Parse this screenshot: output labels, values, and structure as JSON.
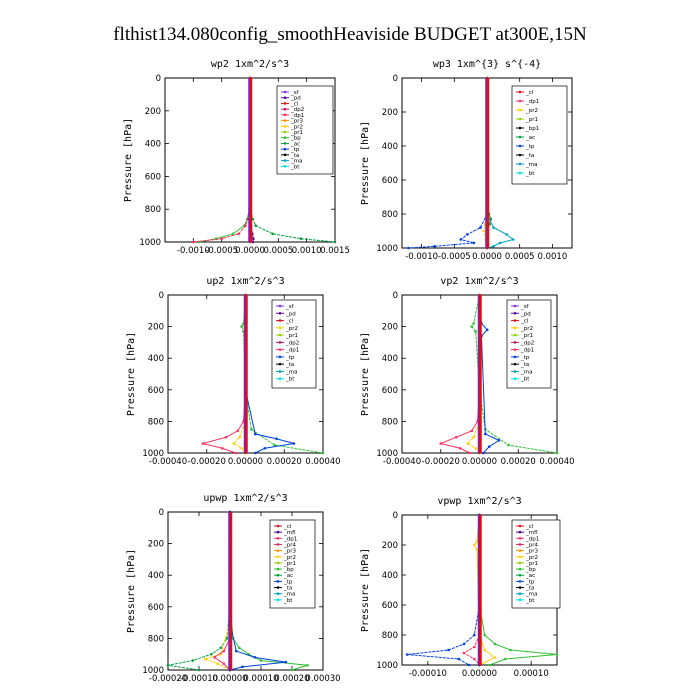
{
  "figure_title": "flthist134.080config_smoothHeaviside  BUDGET at300E,15N",
  "colors": {
    "sf": "#8a2be2",
    "pd": "#5a0aa0",
    "cl": "#e0101a",
    "dp2": "#c01060",
    "dp1": "#ff3060",
    "pr3": "#ff9000",
    "pr2": "#ffd000",
    "pr1": "#90d000",
    "bp": "#30c030",
    "ac": "#00a040",
    "tp": "#0040e0",
    "ta": "#000000",
    "ma": "#00a0c0",
    "bt": "#00e0e0",
    "mfl": "#4b0090",
    "pr4": "#d03070"
  },
  "chart_data": [
    {
      "type": "line",
      "title": "wp2  1xm^2/s^3",
      "xlim": [
        -0.0015,
        0.0015
      ],
      "ylim": [
        1000,
        0
      ],
      "xticks": [
        "-0.0010",
        "-0.0005",
        "0.0000",
        "0.0005",
        "0.0010",
        "0.0015"
      ],
      "xtick_values": [
        -0.001,
        -0.0005,
        0.0,
        0.0005,
        0.001,
        0.0015
      ],
      "yticks": [
        0,
        200,
        400,
        600,
        800,
        1000
      ],
      "ylabel": "Pressure [hPa]",
      "legend": [
        "_sf",
        "_pd",
        "_cl",
        "_dp2",
        "_dp1",
        "_pr3",
        "_pr2",
        "_pr1",
        "_bp",
        "_ac",
        "_tp",
        "_ta",
        "_ma",
        "_bt"
      ],
      "series": [
        {
          "key": "pd",
          "pressure": [
            0,
            300,
            600,
            800,
            900,
            950,
            980,
            1000
          ],
          "values": [
            0,
            0,
            0,
            0,
            2e-05,
            4e-05,
            6e-05,
            5e-05
          ]
        },
        {
          "key": "ac",
          "pressure": [
            0,
            600,
            800,
            860,
            900,
            950,
            980,
            1000
          ],
          "values": [
            0,
            0,
            1e-05,
            5e-05,
            0.0001,
            0.0004,
            0.0009,
            0.0015
          ]
        },
        {
          "key": "bp",
          "pressure": [
            0,
            600,
            800,
            860,
            900,
            950,
            980,
            1000
          ],
          "values": [
            0,
            0,
            -1e-05,
            -5e-05,
            -0.0001,
            -0.0003,
            -0.0006,
            -0.0009
          ]
        },
        {
          "key": "dp1",
          "pressure": [
            0,
            600,
            800,
            860,
            900,
            950,
            980,
            1000
          ],
          "values": [
            0,
            0,
            -1e-05,
            -3e-05,
            -8e-05,
            -0.0002,
            -0.0005,
            -0.001
          ]
        },
        {
          "key": "cl",
          "pressure": [
            0,
            200,
            400,
            600,
            800,
            900,
            950,
            1000
          ],
          "values": [
            0,
            0,
            0,
            0,
            0,
            0,
            0,
            0
          ]
        }
      ]
    },
    {
      "type": "line",
      "title": "wp3  1xm^{3} s^{-4}",
      "xlim": [
        -0.0013,
        0.0013
      ],
      "ylim": [
        1000,
        0
      ],
      "xticks": [
        "-0.0010",
        "-0.0005",
        "0.0000",
        "0.0005",
        "0.0010"
      ],
      "xtick_values": [
        -0.001,
        -0.0005,
        0.0,
        0.0005,
        0.001
      ],
      "yticks": [
        0,
        200,
        400,
        600,
        800,
        1000
      ],
      "ylabel": "Pressure [hPa]",
      "legend": [
        "_cl",
        "_dp1",
        "_pr2",
        "_pr1",
        "_bp1",
        "_ac",
        "_tp",
        "_ta",
        "_ma",
        "_bt"
      ],
      "series": [
        {
          "key": "ac",
          "pressure": [
            0,
            700,
            800,
            830,
            860,
            900,
            950,
            1000
          ],
          "values": [
            0,
            0,
            3e-05,
            6e-05,
            4e-05,
            1e-05,
            0,
            0
          ]
        },
        {
          "key": "tp",
          "pressure": [
            0,
            800,
            880,
            920,
            950,
            970,
            990,
            1000
          ],
          "values": [
            0,
            0,
            -0.0001,
            -0.0003,
            -0.0004,
            -0.0002,
            -0.0008,
            -0.0012
          ]
        },
        {
          "key": "ma",
          "pressure": [
            0,
            800,
            880,
            920,
            950,
            970,
            990,
            1000
          ],
          "values": [
            0,
            0,
            0.0001,
            0.0003,
            0.0004,
            0.0002,
            0.0001,
            0
          ]
        },
        {
          "key": "pr2",
          "pressure": [
            0,
            800,
            860,
            900,
            950,
            1000
          ],
          "values": [
            0,
            0,
            -3e-05,
            -5e-05,
            -2e-05,
            0
          ]
        },
        {
          "key": "cl",
          "pressure": [
            0,
            200,
            400,
            600,
            800,
            1000
          ],
          "values": [
            0,
            0,
            0,
            0,
            0,
            0
          ]
        }
      ]
    },
    {
      "type": "line",
      "title": "up2  1xm^2/s^3",
      "xlim": [
        -0.0004,
        0.0004
      ],
      "ylim": [
        1000,
        0
      ],
      "xticks": [
        "-0.00040",
        "-0.00020",
        "0.00000",
        "0.00020",
        "0.00040"
      ],
      "xtick_values": [
        -0.0004,
        -0.0002,
        0.0,
        0.0002,
        0.0004
      ],
      "yticks": [
        0,
        200,
        400,
        600,
        800,
        1000
      ],
      "ylabel": "Pressure [hPa]",
      "legend": [
        "_sf",
        "_pd",
        "_cl",
        "_pr2",
        "_pr1",
        "_dp2",
        "_dp1",
        "_tp",
        "_ta",
        "_ma",
        "_bt"
      ],
      "series": [
        {
          "key": "dp1",
          "pressure": [
            0,
            600,
            800,
            860,
            900,
            940,
            970,
            1000
          ],
          "values": [
            0,
            0,
            -1e-05,
            -4e-05,
            -0.0001,
            -0.00022,
            -0.00012,
            -5e-05
          ]
        },
        {
          "key": "bp",
          "pressure": [
            0,
            180,
            200,
            230,
            600,
            850,
            950,
            1000
          ],
          "values": [
            0,
            -1e-05,
            -2e-05,
            -1e-05,
            0,
            3e-05,
            0.00015,
            0.0004
          ]
        },
        {
          "key": "tp",
          "pressure": [
            0,
            600,
            880,
            910,
            940,
            970,
            1000
          ],
          "values": [
            0,
            0,
            5e-05,
            0.00016,
            0.00025,
            0.0001,
            5e-05
          ]
        },
        {
          "key": "pr2",
          "pressure": [
            0,
            800,
            900,
            940,
            970,
            1000
          ],
          "values": [
            0,
            0,
            -3e-05,
            -6e-05,
            -2e-05,
            0
          ]
        },
        {
          "key": "cl",
          "pressure": [
            0,
            200,
            400,
            600,
            800,
            1000
          ],
          "values": [
            0,
            0,
            0,
            0,
            0,
            0
          ]
        }
      ]
    },
    {
      "type": "line",
      "title": "vp2  1xm^2/s^3",
      "xlim": [
        -0.0004,
        0.0004
      ],
      "ylim": [
        1000,
        0
      ],
      "xticks": [
        "-0.00040",
        "-0.00020",
        "0.00000",
        "0.00020",
        "0.00040"
      ],
      "xtick_values": [
        -0.0004,
        -0.0002,
        0.0,
        0.0002,
        0.0004
      ],
      "yticks": [
        0,
        200,
        400,
        600,
        800,
        1000
      ],
      "ylabel": "Pressure [hPa]",
      "legend": [
        "_sf",
        "_pd",
        "_cl",
        "_pr2",
        "_pr1",
        "_dp2",
        "_dp1",
        "_tp",
        "_ta",
        "_ma",
        "_bt"
      ],
      "series": [
        {
          "key": "dp1",
          "pressure": [
            0,
            600,
            800,
            860,
            900,
            940,
            970,
            1000
          ],
          "values": [
            0,
            0,
            -1e-05,
            -4e-05,
            -0.00012,
            -0.0002,
            -0.0001,
            -5e-05
          ]
        },
        {
          "key": "bp",
          "pressure": [
            0,
            180,
            200,
            230,
            600,
            850,
            950,
            1000
          ],
          "values": [
            0,
            -3e-05,
            -4e-05,
            -2e-05,
            0,
            3e-05,
            0.00015,
            0.0004
          ]
        },
        {
          "key": "tp",
          "pressure": [
            0,
            180,
            220,
            260,
            880,
            920,
            960,
            1000
          ],
          "values": [
            0,
            1e-05,
            4e-05,
            1e-05,
            3e-05,
            0.0001,
            5e-05,
            2e-05
          ]
        },
        {
          "key": "pr2",
          "pressure": [
            0,
            800,
            900,
            940,
            970,
            1000
          ],
          "values": [
            0,
            0,
            -3e-05,
            -6e-05,
            -2e-05,
            0
          ]
        },
        {
          "key": "cl",
          "pressure": [
            0,
            200,
            400,
            600,
            800,
            1000
          ],
          "values": [
            0,
            0,
            0,
            0,
            0,
            0
          ]
        }
      ]
    },
    {
      "type": "line",
      "title": "upwp  1xm^2/s^3",
      "xlim": [
        -0.0002,
        0.0003
      ],
      "ylim": [
        1000,
        0
      ],
      "xticks": [
        "-0.00020",
        "-0.00010",
        "0.00000",
        "0.00010",
        "0.00020",
        "0.00030"
      ],
      "xtick_values": [
        -0.0002,
        -0.0001,
        0.0,
        0.0001,
        0.0002,
        0.0003
      ],
      "yticks": [
        0,
        200,
        400,
        600,
        800,
        1000
      ],
      "ylabel": "Pressure [hPa]",
      "legend": [
        "_cl",
        "_mfl",
        "_dp1",
        "_pr4",
        "_pr3",
        "_pr2",
        "_pr1",
        "_bp",
        "_ac",
        "_tp",
        "_ta",
        "_ma",
        "_bt"
      ],
      "series": [
        {
          "key": "bp",
          "pressure": [
            0,
            600,
            800,
            860,
            900,
            940,
            970,
            1000
          ],
          "values": [
            0,
            0,
            1e-05,
            3e-05,
            6e-05,
            0.0001,
            0.00025,
            0.0002
          ]
        },
        {
          "key": "ac",
          "pressure": [
            0,
            600,
            800,
            860,
            900,
            940,
            970,
            1000
          ],
          "values": [
            0,
            0,
            -1e-05,
            -3e-05,
            -6e-05,
            -0.00012,
            -0.0002,
            -0.0001
          ]
        },
        {
          "key": "tp",
          "pressure": [
            0,
            700,
            880,
            920,
            950,
            980,
            1000
          ],
          "values": [
            0,
            0,
            2e-05,
            8e-05,
            0.00018,
            4e-05,
            0
          ]
        },
        {
          "key": "pr2",
          "pressure": [
            0,
            700,
            900,
            930,
            960,
            1000
          ],
          "values": [
            0,
            0,
            -3e-05,
            -8e-05,
            -4e-05,
            0
          ]
        },
        {
          "key": "dp1",
          "pressure": [
            0,
            800,
            880,
            920,
            960,
            1000
          ],
          "values": [
            0,
            0,
            -2e-05,
            -5e-05,
            -2e-05,
            0
          ]
        },
        {
          "key": "mfl",
          "pressure": [
            0,
            200,
            400,
            600,
            800,
            1000
          ],
          "values": [
            0,
            0,
            0,
            0,
            0,
            0
          ]
        }
      ]
    },
    {
      "type": "line",
      "title": "vpwp  1xm^2/s^3",
      "xlim": [
        -0.00015,
        0.00015
      ],
      "ylim": [
        1000,
        0
      ],
      "xticks": [
        "-0.00010",
        "0.00000",
        "0.00010"
      ],
      "xtick_values": [
        -0.0001,
        0.0,
        0.0001
      ],
      "yticks": [
        0,
        200,
        400,
        600,
        800,
        1000
      ],
      "ylabel": "Pressure [hPa]",
      "legend": [
        "_cl",
        "_mfl",
        "_dp1",
        "_pr4",
        "_pr3",
        "_pr2",
        "_pr1",
        "_bp",
        "_ac",
        "_tp",
        "_ta",
        "_ma",
        "_bt"
      ],
      "series": [
        {
          "key": "bp",
          "pressure": [
            0,
            600,
            800,
            860,
            900,
            930,
            960,
            1000
          ],
          "values": [
            0,
            0,
            1e-05,
            3e-05,
            6e-05,
            0.00015,
            5e-05,
            2e-05
          ]
        },
        {
          "key": "tp",
          "pressure": [
            0,
            600,
            800,
            860,
            900,
            930,
            960,
            1000
          ],
          "values": [
            0,
            0,
            -1e-05,
            -3e-05,
            -6e-05,
            -0.00014,
            -4e-05,
            -2e-05
          ]
        },
        {
          "key": "pr2",
          "pressure": [
            0,
            180,
            200,
            230,
            800,
            900,
            950,
            1000
          ],
          "values": [
            0,
            -5e-06,
            -1e-05,
            -5e-06,
            0,
            1e-05,
            3e-05,
            0
          ]
        },
        {
          "key": "dp1",
          "pressure": [
            0,
            800,
            880,
            920,
            960,
            1000
          ],
          "values": [
            0,
            0,
            -1e-05,
            -3e-05,
            -1e-05,
            0
          ]
        },
        {
          "key": "mfl",
          "pressure": [
            0,
            200,
            400,
            600,
            800,
            1000
          ],
          "values": [
            0,
            0,
            0,
            0,
            0,
            0
          ]
        }
      ]
    }
  ]
}
